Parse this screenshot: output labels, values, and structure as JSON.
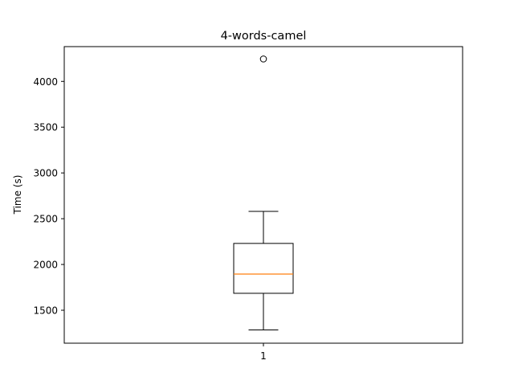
{
  "chart_data": {
    "type": "boxplot",
    "title": "4-words-camel",
    "xlabel": "",
    "ylabel": "Time (s)",
    "categories": [
      "1"
    ],
    "ylim": [
      1140,
      4380
    ],
    "yticks": [
      1500,
      2000,
      2500,
      3000,
      3500,
      4000
    ],
    "grid": false,
    "boxes": [
      {
        "category": "1",
        "whisker_low": 1285,
        "q1": 1685,
        "median": 1895,
        "q3": 2230,
        "whisker_high": 2580,
        "outliers": [
          4245
        ]
      }
    ],
    "colors": {
      "box": "#000000",
      "median": "#ff7f0e",
      "axes": "#000000"
    }
  }
}
